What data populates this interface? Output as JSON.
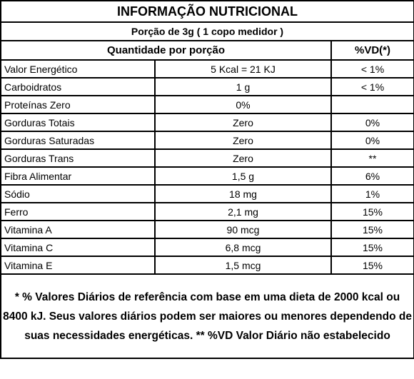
{
  "header": {
    "title": "INFORMAÇÃO NUTRICIONAL",
    "portion": "Porção de 3g ( 1 copo medidor )"
  },
  "table": {
    "columns": [
      "Quantidade por porção",
      "%VD(*)"
    ],
    "rows": [
      [
        "Valor Energético",
        "5 Kcal = 21 KJ",
        "< 1%"
      ],
      [
        "Carboidratos",
        "1 g",
        "< 1%"
      ],
      [
        "Proteínas Zero",
        "0%"
      ],
      [
        "Gorduras Totais",
        "Zero",
        "0%"
      ],
      [
        "Gorduras Saturadas",
        "Zero",
        "0%"
      ],
      [
        "Gorduras Trans",
        "Zero",
        "**"
      ],
      [
        "Fibra Alimentar",
        "1,5 g",
        "6%"
      ],
      [
        "Sódio",
        "18 mg",
        "1%"
      ],
      [
        "Ferro",
        "2,1 mg",
        "15%"
      ],
      [
        "Vitamina A",
        "90 mcg",
        "15%"
      ],
      [
        "Vitamina C",
        "6,8 mcg",
        "15%"
      ],
      [
        "Vitamina E",
        "1,5 mcg",
        "15%"
      ]
    ]
  },
  "footer": {
    "note": "* % Valores Diários de referência com base em uma dieta de 2000 kcal ou 8400 kJ. Seus valores diários podem ser maiores ou menores dependendo de suas necessidades energéticas. ** %VD Valor Diário não estabelecido"
  }
}
